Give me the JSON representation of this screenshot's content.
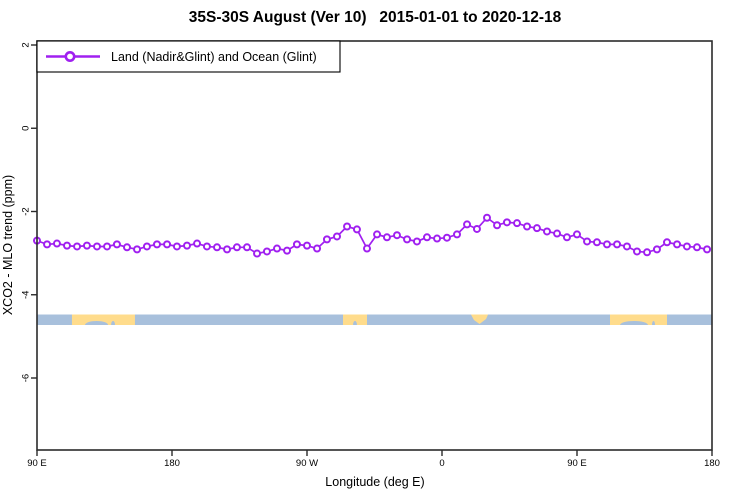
{
  "chart_data": {
    "type": "line",
    "title": "35S-30S August (Ver 10)   2015-01-01 to 2020-12-18",
    "xlabel": "Longitude (deg E)",
    "ylabel": "XCO2 - MLO trend (ppm)",
    "grid": false,
    "legend": {
      "position": "top-left",
      "entries": [
        {
          "label": "Land (Nadir&Glint) and Ocean (Glint)",
          "color": "#A020F0",
          "marker": "open-circle"
        }
      ]
    },
    "x_axis": {
      "tick_labels": [
        "90 E",
        "180",
        "90 W",
        "0",
        "90 E",
        "180"
      ],
      "tick_lons": [
        90,
        180,
        270,
        360,
        450,
        540
      ],
      "note": "longitude increases eastward from 90E and wraps around the globe (450 deg span)"
    },
    "y_axis": {
      "tick_values": [
        2,
        0,
        -2,
        -4,
        -6
      ],
      "tick_labels": [
        "2",
        "0",
        "-2",
        "-4",
        "-6"
      ],
      "ylim": [
        -7.8,
        2.1
      ]
    },
    "series": [
      {
        "name": "Land (Nadir&Glint) and Ocean (Glint)",
        "color": "#A020F0",
        "marker": "open-circle",
        "points": [
          [
            90.0,
            -2.7
          ],
          [
            96.7,
            -2.79
          ],
          [
            103.3,
            -2.77
          ],
          [
            110.0,
            -2.82
          ],
          [
            116.7,
            -2.84
          ],
          [
            123.3,
            -2.82
          ],
          [
            130.0,
            -2.84
          ],
          [
            136.7,
            -2.84
          ],
          [
            143.3,
            -2.79
          ],
          [
            150.0,
            -2.86
          ],
          [
            156.7,
            -2.91
          ],
          [
            163.3,
            -2.84
          ],
          [
            170.0,
            -2.79
          ],
          [
            176.7,
            -2.79
          ],
          [
            183.3,
            -2.84
          ],
          [
            190.0,
            -2.82
          ],
          [
            196.7,
            -2.77
          ],
          [
            203.3,
            -2.84
          ],
          [
            210.0,
            -2.86
          ],
          [
            216.7,
            -2.91
          ],
          [
            223.3,
            -2.86
          ],
          [
            230.0,
            -2.86
          ],
          [
            236.7,
            -3.01
          ],
          [
            243.3,
            -2.96
          ],
          [
            250.0,
            -2.89
          ],
          [
            256.7,
            -2.94
          ],
          [
            263.3,
            -2.79
          ],
          [
            270.0,
            -2.82
          ],
          [
            276.7,
            -2.89
          ],
          [
            283.3,
            -2.67
          ],
          [
            290.0,
            -2.6
          ],
          [
            296.7,
            -2.36
          ],
          [
            303.3,
            -2.43
          ],
          [
            310.0,
            -2.89
          ],
          [
            316.7,
            -2.55
          ],
          [
            323.3,
            -2.62
          ],
          [
            330.0,
            -2.57
          ],
          [
            336.7,
            -2.67
          ],
          [
            343.3,
            -2.72
          ],
          [
            350.0,
            -2.62
          ],
          [
            356.7,
            -2.65
          ],
          [
            363.3,
            -2.63
          ],
          [
            370.0,
            -2.55
          ],
          [
            376.7,
            -2.31
          ],
          [
            383.3,
            -2.42
          ],
          [
            390.0,
            -2.15
          ],
          [
            396.7,
            -2.33
          ],
          [
            403.3,
            -2.26
          ],
          [
            410.0,
            -2.28
          ],
          [
            416.7,
            -2.36
          ],
          [
            423.3,
            -2.4
          ],
          [
            430.0,
            -2.48
          ],
          [
            436.7,
            -2.53
          ],
          [
            443.3,
            -2.62
          ],
          [
            450.0,
            -2.55
          ],
          [
            456.7,
            -2.72
          ],
          [
            463.3,
            -2.74
          ],
          [
            470.0,
            -2.79
          ],
          [
            476.7,
            -2.79
          ],
          [
            483.3,
            -2.84
          ],
          [
            490.0,
            -2.96
          ],
          [
            496.7,
            -2.98
          ],
          [
            503.3,
            -2.91
          ],
          [
            510.0,
            -2.74
          ],
          [
            516.7,
            -2.79
          ],
          [
            523.3,
            -2.84
          ],
          [
            530.0,
            -2.86
          ],
          [
            536.7,
            -2.91
          ]
        ]
      }
    ],
    "land_ocean_band": {
      "description": "map strip showing land (yellow) vs ocean (blue) along the 35S-30S latitude band by longitude",
      "value_top": -4.5,
      "value_bottom": -4.75,
      "ocean_color": "#A8C0DC",
      "land_color": "#FFDC8C",
      "land_segments": [
        {
          "name": "australia",
          "from_lon": 113.3,
          "to_lon": 155.3,
          "shape": "rect"
        },
        {
          "name": "south-america",
          "from_lon": 294.0,
          "to_lon": 310.0,
          "shape": "rect"
        },
        {
          "name": "south-africa",
          "from_lon": 379.3,
          "to_lon": 390.7,
          "shape": "wedge"
        },
        {
          "name": "australia-repeat",
          "from_lon": 472.0,
          "to_lon": 510.0,
          "shape": "rect"
        }
      ],
      "coast_notches": [
        {
          "center_lon": 129.7,
          "half_width_lon": 7.7
        },
        {
          "center_lon": 140.7,
          "half_width_lon": 1.3
        },
        {
          "center_lon": 302.0,
          "half_width_lon": 1.3
        },
        {
          "center_lon": 488.0,
          "half_width_lon": 9.3
        },
        {
          "center_lon": 501.0,
          "half_width_lon": 1.0
        }
      ]
    }
  }
}
